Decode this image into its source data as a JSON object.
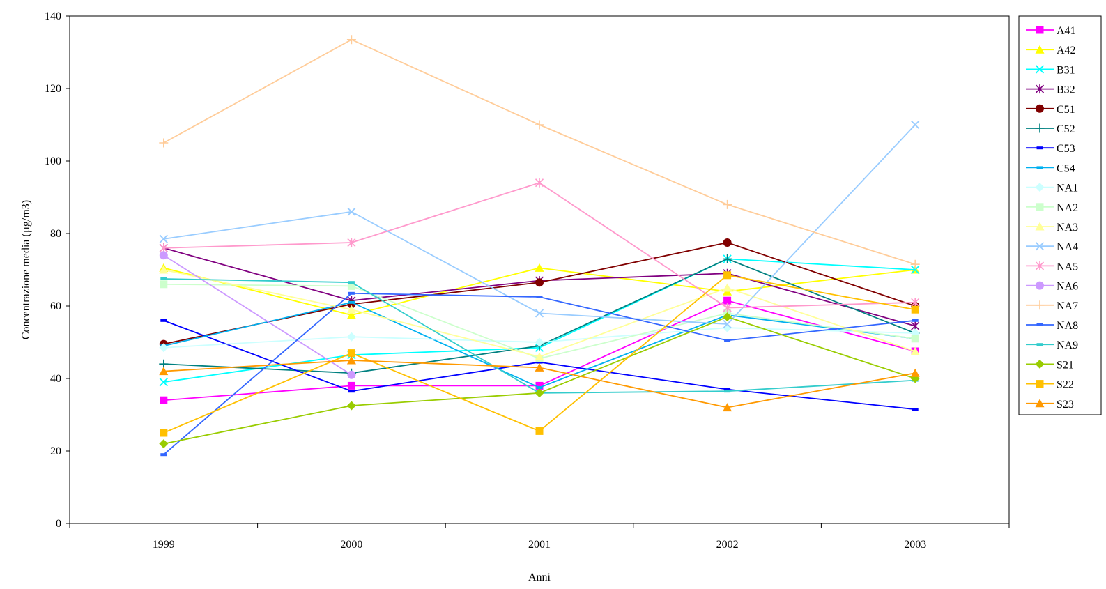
{
  "chart_data": {
    "type": "line",
    "title": "",
    "xlabel": "Anni",
    "ylabel": "Concentrazione media (µg/m3)",
    "x": [
      "1999",
      "2000",
      "2001",
      "2002",
      "2003"
    ],
    "ylim": [
      0,
      140
    ],
    "yticks": [
      0,
      20,
      40,
      60,
      80,
      100,
      120,
      140
    ],
    "grid": false,
    "legend_position": "right",
    "series": [
      {
        "name": "A41",
        "color": "#ff00ff",
        "marker": "square",
        "values": [
          34,
          38,
          38,
          61.5,
          47.5
        ]
      },
      {
        "name": "A42",
        "color": "#ffff00",
        "marker": "triangle",
        "values": [
          70.5,
          57.5,
          70.5,
          64,
          70
        ]
      },
      {
        "name": "B31",
        "color": "#00ffff",
        "marker": "x",
        "values": [
          39,
          46.5,
          48.5,
          73,
          70
        ]
      },
      {
        "name": "B32",
        "color": "#800080",
        "marker": "star",
        "values": [
          76,
          61.5,
          67,
          69,
          54.5
        ]
      },
      {
        "name": "C51",
        "color": "#800000",
        "marker": "circle",
        "values": [
          49.5,
          60.5,
          66.5,
          77.5,
          60
        ]
      },
      {
        "name": "C52",
        "color": "#008080",
        "marker": "plus",
        "values": [
          44,
          41.5,
          49,
          73,
          52.5
        ]
      },
      {
        "name": "C53",
        "color": "#0000ff",
        "marker": "dash",
        "values": [
          56,
          36.5,
          44.5,
          37,
          31.5
        ]
      },
      {
        "name": "C54",
        "color": "#00b0f0",
        "marker": "dash",
        "values": [
          49,
          61,
          37.5,
          57.5,
          51
        ]
      },
      {
        "name": "NA1",
        "color": "#ccffff",
        "marker": "diamond",
        "values": [
          48.5,
          51.5,
          50,
          54,
          52.5
        ]
      },
      {
        "name": "NA2",
        "color": "#ccffcc",
        "marker": "square",
        "values": [
          66,
          65.5,
          45.5,
          58,
          51
        ]
      },
      {
        "name": "NA3",
        "color": "#ffff99",
        "marker": "triangle",
        "values": [
          70,
          59,
          46,
          65,
          47.5
        ]
      },
      {
        "name": "NA4",
        "color": "#99ccff",
        "marker": "x",
        "values": [
          78.5,
          86,
          58,
          55,
          110
        ]
      },
      {
        "name": "NA5",
        "color": "#ff99cc",
        "marker": "star",
        "values": [
          76,
          77.5,
          94,
          59.5,
          61
        ]
      },
      {
        "name": "NA6",
        "color": "#cc99ff",
        "marker": "circle",
        "values": [
          74,
          41,
          null,
          null,
          null
        ]
      },
      {
        "name": "NA7",
        "color": "#ffcc99",
        "marker": "plus",
        "values": [
          105,
          133.5,
          110,
          88,
          71.5
        ]
      },
      {
        "name": "NA8",
        "color": "#3366ff",
        "marker": "dash",
        "values": [
          19,
          63.5,
          62.5,
          50.5,
          56
        ]
      },
      {
        "name": "NA9",
        "color": "#33cccc",
        "marker": "dash",
        "values": [
          67.5,
          66.5,
          36,
          36.5,
          39.5
        ]
      },
      {
        "name": "S21",
        "color": "#99cc00",
        "marker": "diamond",
        "values": [
          22,
          32.5,
          36,
          57,
          40
        ]
      },
      {
        "name": "S22",
        "color": "#ffc000",
        "marker": "square",
        "values": [
          25,
          47,
          25.5,
          68.5,
          59
        ]
      },
      {
        "name": "S23",
        "color": "#ff9900",
        "marker": "triangle",
        "values": [
          42,
          45,
          43,
          32,
          41.5
        ]
      }
    ]
  }
}
